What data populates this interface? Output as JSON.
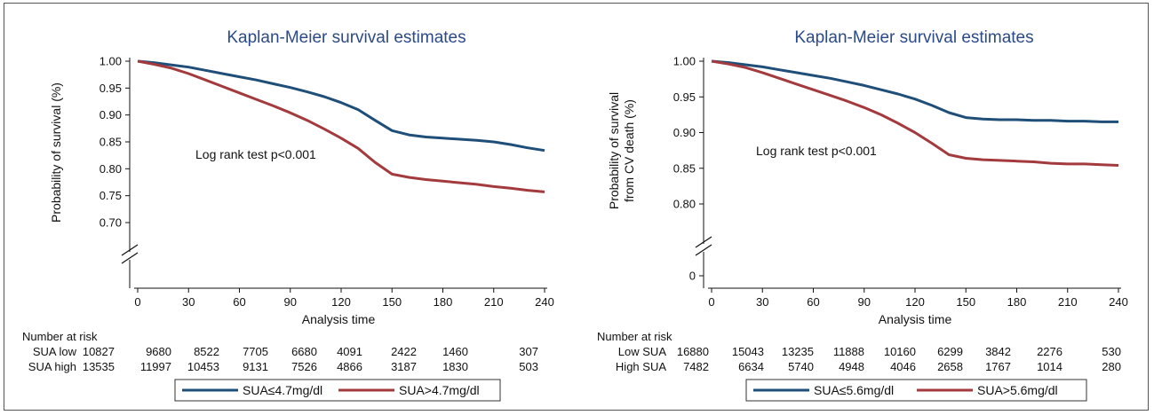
{
  "chart_data": [
    {
      "type": "line",
      "title": "Kaplan-Meier survival estimates",
      "xlabel": "Analysis time",
      "ylabel": [
        "Probability of survival (%)"
      ],
      "x_ticks": [
        "0",
        "30",
        "60",
        "90",
        "120",
        "150",
        "180",
        "210",
        "240"
      ],
      "y_ticks": [
        "1.00",
        "0.95",
        "0.90",
        "0.85",
        "0.80",
        "0.75",
        "0.70"
      ],
      "xlim": [
        0,
        240
      ],
      "ylim": [
        0.65,
        1.0
      ],
      "y_axis_break": true,
      "annotation": "Log rank test p<0.001",
      "series": [
        {
          "name": "SUA≤4.7mg/dl",
          "color": "#1f4e79",
          "x": [
            0,
            10,
            20,
            30,
            40,
            50,
            60,
            70,
            80,
            90,
            100,
            110,
            120,
            130,
            140,
            150,
            160,
            170,
            180,
            190,
            200,
            210,
            220,
            230,
            240
          ],
          "y": [
            1.0,
            0.997,
            0.993,
            0.989,
            0.983,
            0.977,
            0.971,
            0.965,
            0.958,
            0.951,
            0.943,
            0.934,
            0.923,
            0.91,
            0.89,
            0.871,
            0.863,
            0.859,
            0.857,
            0.855,
            0.853,
            0.85,
            0.845,
            0.839,
            0.834
          ]
        },
        {
          "name": "SUA>4.7mg/dl",
          "color": "#a33a3e",
          "x": [
            0,
            10,
            20,
            30,
            40,
            50,
            60,
            70,
            80,
            90,
            100,
            110,
            120,
            130,
            140,
            150,
            160,
            170,
            180,
            190,
            200,
            210,
            220,
            230,
            240
          ],
          "y": [
            1.0,
            0.994,
            0.987,
            0.977,
            0.965,
            0.953,
            0.941,
            0.929,
            0.917,
            0.904,
            0.89,
            0.874,
            0.857,
            0.838,
            0.812,
            0.79,
            0.784,
            0.78,
            0.777,
            0.774,
            0.771,
            0.767,
            0.764,
            0.76,
            0.757
          ]
        }
      ],
      "risk_table": {
        "header": "Number at risk",
        "rows": [
          {
            "label": "SUA low",
            "values": [
              "10827",
              "9680",
              "8522",
              "7705",
              "6680",
              "4091",
              "2422",
              "1460",
              "307"
            ]
          },
          {
            "label": "SUA high",
            "values": [
              "13535",
              "11997",
              "10453",
              "9131",
              "7526",
              "4866",
              "3187",
              "1830",
              "503"
            ]
          }
        ]
      },
      "legend": {
        "placement": "bottom",
        "items": [
          "SUA≤4.7mg/dl",
          "SUA>4.7mg/dl"
        ]
      }
    },
    {
      "type": "line",
      "title": "Kaplan-Meier survival estimates",
      "xlabel": "Analysis time",
      "ylabel": [
        "Probability of survival",
        "from CV death (%)"
      ],
      "x_ticks": [
        "0",
        "30",
        "60",
        "90",
        "120",
        "150",
        "180",
        "210",
        "240"
      ],
      "y_ticks": [
        "1.00",
        "0.95",
        "0.90",
        "0.85",
        "0.80",
        "0"
      ],
      "xlim": [
        0,
        240
      ],
      "ylim": [
        0.75,
        1.0
      ],
      "y_axis_break": true,
      "annotation": "Log rank test p<0.001",
      "series": [
        {
          "name": "SUA≤5.6mg/dl",
          "color": "#1f4e79",
          "x": [
            0,
            10,
            20,
            30,
            40,
            50,
            60,
            70,
            80,
            90,
            100,
            110,
            120,
            130,
            140,
            150,
            160,
            170,
            180,
            190,
            200,
            210,
            220,
            230,
            240
          ],
          "y": [
            1.0,
            0.998,
            0.995,
            0.992,
            0.988,
            0.984,
            0.98,
            0.976,
            0.971,
            0.966,
            0.96,
            0.954,
            0.947,
            0.938,
            0.928,
            0.921,
            0.919,
            0.918,
            0.918,
            0.917,
            0.917,
            0.916,
            0.916,
            0.915,
            0.915
          ]
        },
        {
          "name": "SUA>5.6mg/dl",
          "color": "#a33a3e",
          "x": [
            0,
            10,
            20,
            30,
            40,
            50,
            60,
            70,
            80,
            90,
            100,
            110,
            120,
            130,
            140,
            150,
            160,
            170,
            180,
            190,
            200,
            210,
            220,
            230,
            240
          ],
          "y": [
            1.0,
            0.996,
            0.991,
            0.984,
            0.976,
            0.968,
            0.96,
            0.952,
            0.944,
            0.935,
            0.925,
            0.913,
            0.9,
            0.885,
            0.869,
            0.864,
            0.862,
            0.861,
            0.86,
            0.859,
            0.857,
            0.856,
            0.856,
            0.855,
            0.854
          ]
        }
      ],
      "risk_table": {
        "header": "Number at risk",
        "rows": [
          {
            "label": "Low SUA",
            "values": [
              "16880",
              "15043",
              "13235",
              "11888",
              "10160",
              "6299",
              "3842",
              "2276",
              "530"
            ]
          },
          {
            "label": "High SUA",
            "values": [
              "7482",
              "6634",
              "5740",
              "4948",
              "4046",
              "2658",
              "1767",
              "1014",
              "280"
            ]
          }
        ]
      },
      "legend": {
        "placement": "bottom",
        "items": [
          "SUA≤5.6mg/dl",
          "SUA>5.6mg/dl"
        ]
      }
    }
  ]
}
